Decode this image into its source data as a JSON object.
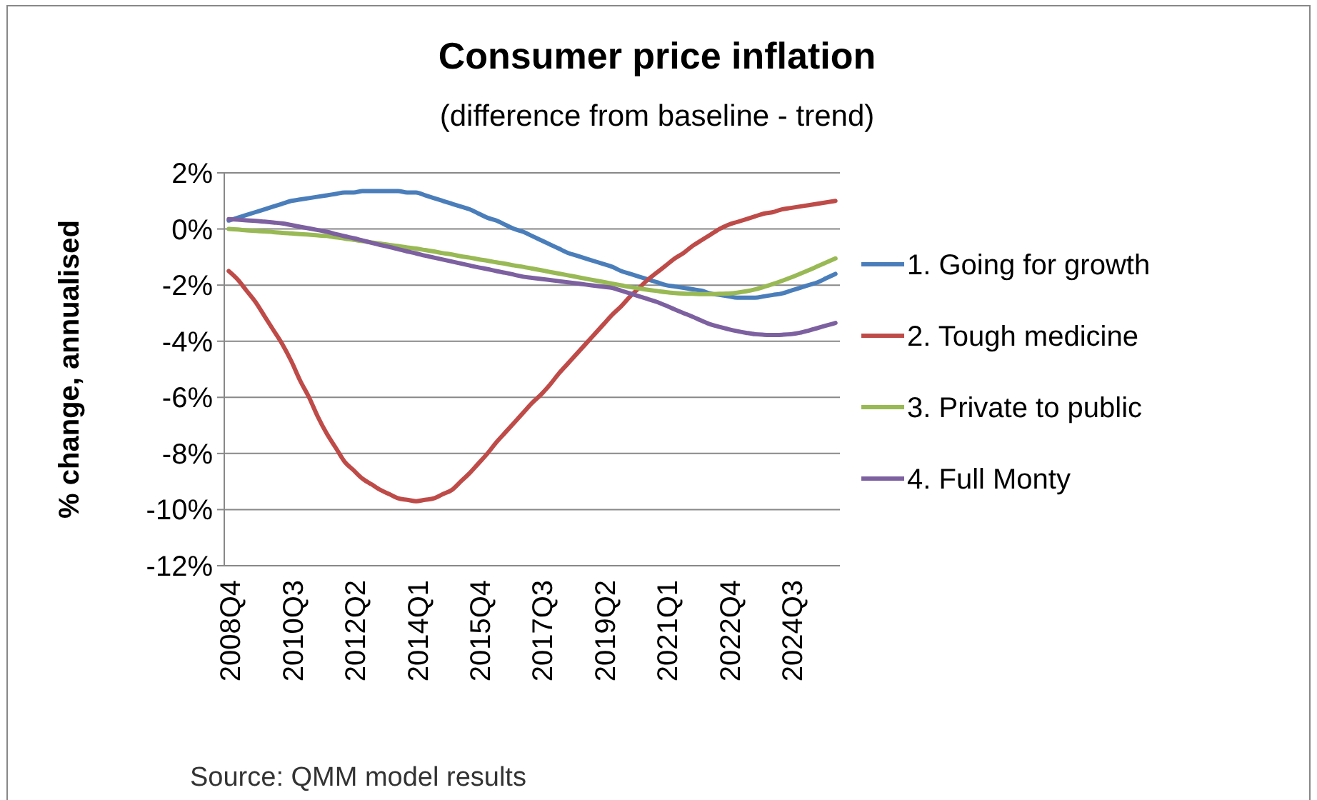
{
  "chart_data": {
    "type": "line",
    "title": "Consumer  price inflation",
    "subtitle": "(difference from baseline - trend)",
    "ylabel": "% change, annualised",
    "annotations": [
      "Source: QMM  model results"
    ],
    "categories": [
      "2008Q4",
      null,
      null,
      null,
      null,
      null,
      null,
      "2010Q3",
      null,
      null,
      null,
      null,
      null,
      null,
      "2012Q2",
      null,
      null,
      null,
      null,
      null,
      null,
      "2014Q1",
      null,
      null,
      null,
      null,
      null,
      null,
      "2015Q4",
      null,
      null,
      null,
      null,
      null,
      null,
      "2017Q3",
      null,
      null,
      null,
      null,
      null,
      null,
      "2019Q2",
      null,
      null,
      null,
      null,
      null,
      null,
      "2021Q1",
      null,
      null,
      null,
      null,
      null,
      null,
      "2022Q4",
      null,
      null,
      null,
      null,
      null,
      null,
      "2024Q3",
      null,
      null,
      null,
      null,
      null
    ],
    "series": [
      {
        "name": "1. Going for growth",
        "color": "#4a7ebb",
        "values": [
          0.3,
          0.4,
          0.5,
          0.6,
          0.7,
          0.8,
          0.9,
          1.0,
          1.05,
          1.1,
          1.15,
          1.2,
          1.25,
          1.3,
          1.3,
          1.35,
          1.35,
          1.35,
          1.35,
          1.35,
          1.3,
          1.3,
          1.2,
          1.1,
          1.0,
          0.9,
          0.8,
          0.7,
          0.55,
          0.4,
          0.3,
          0.15,
          0,
          -0.1,
          -0.25,
          -0.4,
          -0.55,
          -0.7,
          -0.85,
          -0.95,
          -1.05,
          -1.15,
          -1.25,
          -1.35,
          -1.5,
          -1.6,
          -1.7,
          -1.8,
          -1.9,
          -2.0,
          -2.05,
          -2.1,
          -2.15,
          -2.2,
          -2.3,
          -2.35,
          -2.4,
          -2.45,
          -2.45,
          -2.45,
          -2.4,
          -2.35,
          -2.3,
          -2.2,
          -2.1,
          -2.0,
          -1.9,
          -1.75,
          -1.6
        ]
      },
      {
        "name": "2. Tough medicine",
        "color": "#be4b48",
        "values": [
          -1.5,
          -1.8,
          -2.2,
          -2.6,
          -3.1,
          -3.6,
          -4.1,
          -4.7,
          -5.4,
          -6.0,
          -6.7,
          -7.3,
          -7.8,
          -8.3,
          -8.6,
          -8.9,
          -9.1,
          -9.3,
          -9.45,
          -9.6,
          -9.65,
          -9.7,
          -9.65,
          -9.6,
          -9.45,
          -9.3,
          -9.0,
          -8.7,
          -8.35,
          -8.0,
          -7.6,
          -7.25,
          -6.9,
          -6.55,
          -6.2,
          -5.9,
          -5.55,
          -5.15,
          -4.8,
          -4.45,
          -4.1,
          -3.75,
          -3.4,
          -3.05,
          -2.75,
          -2.4,
          -2.1,
          -1.8,
          -1.55,
          -1.3,
          -1.05,
          -0.85,
          -0.6,
          -0.4,
          -0.2,
          0,
          0.15,
          0.25,
          0.35,
          0.45,
          0.55,
          0.6,
          0.7,
          0.75,
          0.8,
          0.85,
          0.9,
          0.95,
          1.0
        ]
      },
      {
        "name": "3. Private to public",
        "color": "#98b954",
        "values": [
          0,
          -0.02,
          -0.05,
          -0.07,
          -0.09,
          -0.11,
          -0.14,
          -0.16,
          -0.18,
          -0.2,
          -0.23,
          -0.25,
          -0.3,
          -0.34,
          -0.39,
          -0.43,
          -0.48,
          -0.52,
          -0.57,
          -0.61,
          -0.66,
          -0.7,
          -0.75,
          -0.8,
          -0.86,
          -0.91,
          -0.97,
          -1.02,
          -1.08,
          -1.13,
          -1.19,
          -1.24,
          -1.3,
          -1.35,
          -1.41,
          -1.47,
          -1.53,
          -1.59,
          -1.65,
          -1.71,
          -1.77,
          -1.83,
          -1.89,
          -1.95,
          -2.01,
          -2.07,
          -2.12,
          -2.17,
          -2.21,
          -2.25,
          -2.28,
          -2.3,
          -2.31,
          -2.32,
          -2.32,
          -2.31,
          -2.3,
          -2.27,
          -2.22,
          -2.15,
          -2.06,
          -1.96,
          -1.85,
          -1.73,
          -1.6,
          -1.47,
          -1.33,
          -1.19,
          -1.05
        ]
      },
      {
        "name": "4. Full Monty",
        "color": "#7d60a0",
        "values": [
          0.35,
          0.33,
          0.31,
          0.29,
          0.26,
          0.23,
          0.2,
          0.14,
          0.08,
          0.02,
          -0.04,
          -0.1,
          -0.18,
          -0.26,
          -0.33,
          -0.41,
          -0.49,
          -0.57,
          -0.64,
          -0.72,
          -0.8,
          -0.87,
          -0.95,
          -1.02,
          -1.09,
          -1.16,
          -1.23,
          -1.3,
          -1.37,
          -1.43,
          -1.5,
          -1.56,
          -1.63,
          -1.7,
          -1.74,
          -1.78,
          -1.82,
          -1.86,
          -1.9,
          -1.94,
          -1.98,
          -2.02,
          -2.06,
          -2.1,
          -2.2,
          -2.3,
          -2.4,
          -2.5,
          -2.6,
          -2.73,
          -2.87,
          -3.0,
          -3.13,
          -3.27,
          -3.4,
          -3.49,
          -3.57,
          -3.64,
          -3.7,
          -3.75,
          -3.77,
          -3.78,
          -3.77,
          -3.75,
          -3.7,
          -3.62,
          -3.53,
          -3.44,
          -3.35
        ]
      }
    ],
    "ylim": [
      -12,
      2
    ],
    "yticks": [
      {
        "value": 2,
        "label": "2%"
      },
      {
        "value": 0,
        "label": "0%"
      },
      {
        "value": -2,
        "label": "-2%"
      },
      {
        "value": -4,
        "label": "-4%"
      },
      {
        "value": -6,
        "label": "-6%"
      },
      {
        "value": -8,
        "label": "-8%"
      },
      {
        "value": -10,
        "label": "-10%"
      },
      {
        "value": -12,
        "label": "-12%"
      }
    ],
    "grid": "y",
    "legend": "right",
    "marker": "none",
    "line_style": "solid"
  }
}
